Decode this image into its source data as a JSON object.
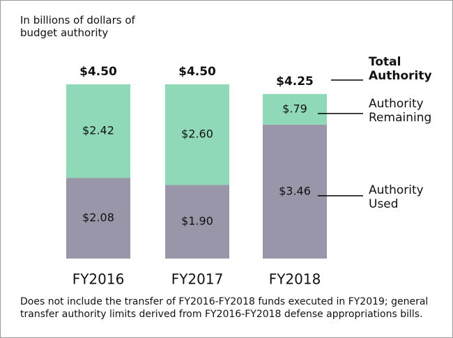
{
  "chart_data": {
    "type": "stacked_bar",
    "title": "In billions of dollars of budget authority",
    "categories": [
      "FY2016",
      "FY2017",
      "FY2018"
    ],
    "series": [
      {
        "name": "Authority Used",
        "color": "#9896a8",
        "values": [
          2.08,
          1.9,
          3.46
        ],
        "value_labels": [
          "$2.08",
          "$1.90",
          "$3.46"
        ]
      },
      {
        "name": "Authority Remaining",
        "color": "#8fd9b8",
        "values": [
          2.42,
          2.6,
          0.79
        ],
        "value_labels": [
          "$2.42",
          "$2.60",
          "$.79"
        ]
      }
    ],
    "total_name": "Total Authority",
    "totals": [
      4.5,
      4.5,
      4.25
    ],
    "total_labels": [
      "$4.50",
      "$4.50",
      "$4.25"
    ],
    "ylim": [
      0,
      4.5
    ],
    "note": "Does not include the transfer of FY2016-FY2018 funds executed in FY2019; general transfer authority limits derived from  FY2016-FY2018 defense appropriations bills."
  }
}
